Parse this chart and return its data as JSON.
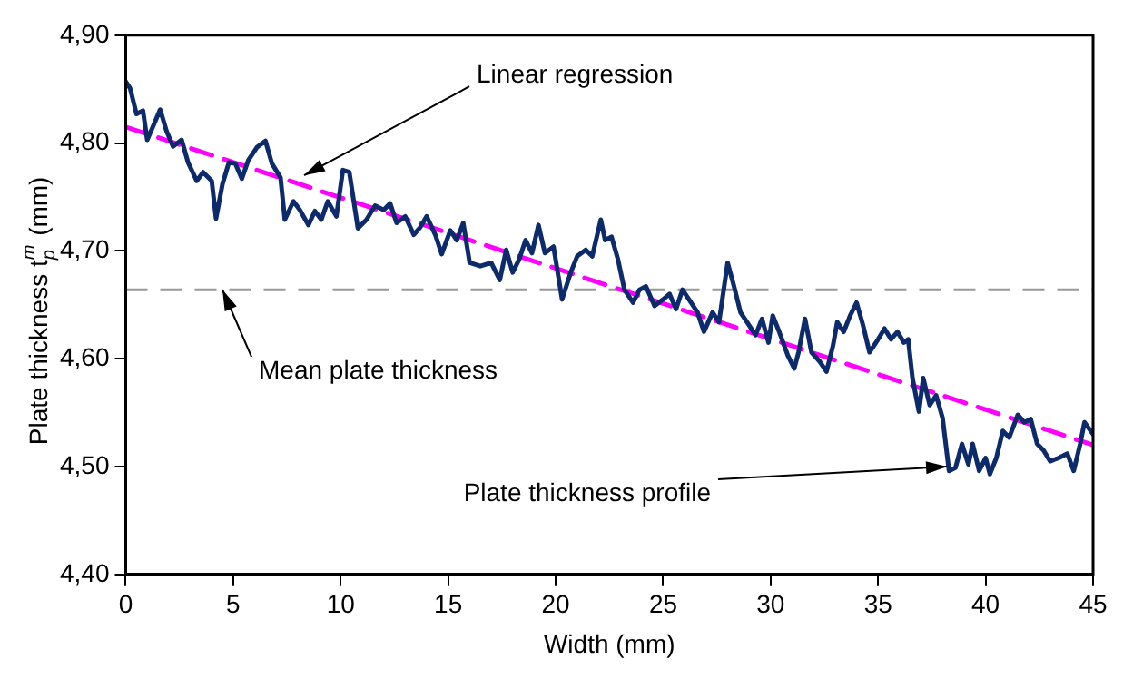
{
  "chart_data": {
    "type": "line",
    "xlabel": "Width (mm)",
    "ylabel": "Plate thickness t$_{p}$$^{m}$ (mm)",
    "xlim": [
      0,
      45
    ],
    "xticks": [
      0,
      5,
      10,
      15,
      20,
      25,
      30,
      35,
      40,
      45
    ],
    "ylim": [
      4.4,
      4.9
    ],
    "yticks": [
      {
        "value": 4.4,
        "label": "4,40"
      },
      {
        "value": 4.5,
        "label": "4,50"
      },
      {
        "value": 4.6,
        "label": "4,60"
      },
      {
        "value": 4.7,
        "label": "4,70"
      },
      {
        "value": 4.8,
        "label": "4,80"
      },
      {
        "value": 4.9,
        "label": "4,90"
      }
    ],
    "grid": false,
    "legend": false,
    "marker": "none",
    "series": [
      {
        "color": "#0d2a6b",
        "line_style": "solid",
        "x": [
          0,
          0.2,
          0.5,
          0.8,
          1.0,
          1.3,
          1.6,
          1.9,
          2.2,
          2.6,
          2.9,
          3.3,
          3.6,
          4.0,
          4.2,
          4.5,
          4.8,
          5.1,
          5.4,
          5.7,
          6.1,
          6.5,
          6.8,
          7.2,
          7.4,
          7.8,
          8.1,
          8.5,
          8.8,
          9.1,
          9.4,
          9.8,
          10.1,
          10.4,
          10.8,
          11.2,
          11.6,
          12.0,
          12.3,
          12.6,
          13.0,
          13.4,
          13.7,
          14.0,
          14.4,
          14.7,
          15.1,
          15.4,
          15.7,
          16.0,
          16.5,
          17.0,
          17.4,
          17.7,
          18.0,
          18.3,
          18.6,
          18.9,
          19.2,
          19.5,
          19.9,
          20.3,
          20.7,
          21.0,
          21.4,
          21.7,
          22.1,
          22.3,
          22.6,
          22.9,
          23.2,
          23.6,
          23.9,
          24.2,
          24.6,
          25.0,
          25.3,
          25.6,
          25.9,
          26.2,
          26.6,
          26.9,
          27.3,
          27.6,
          28.0,
          28.3,
          28.6,
          29.0,
          29.3,
          29.6,
          29.9,
          30.1,
          30.4,
          30.8,
          31.1,
          31.3,
          31.6,
          31.9,
          32.3,
          32.6,
          32.9,
          33.1,
          33.4,
          33.7,
          34.0,
          34.3,
          34.6,
          35.0,
          35.3,
          35.6,
          35.9,
          36.2,
          36.4,
          36.6,
          36.9,
          37.1,
          37.4,
          37.7,
          38.0,
          38.3,
          38.6,
          38.9,
          39.2,
          39.4,
          39.7,
          40.0,
          40.2,
          40.5,
          40.8,
          41.1,
          41.5,
          41.8,
          42.1,
          42.4,
          42.7,
          43.0,
          43.4,
          43.8,
          44.1,
          44.4,
          44.6,
          45.0
        ],
        "values": [
          4.857,
          4.851,
          4.827,
          4.83,
          4.803,
          4.817,
          4.831,
          4.811,
          4.797,
          4.803,
          4.782,
          4.765,
          4.773,
          4.765,
          4.73,
          4.762,
          4.782,
          4.781,
          4.767,
          4.784,
          4.796,
          4.802,
          4.781,
          4.768,
          4.729,
          4.746,
          4.738,
          4.724,
          4.737,
          4.729,
          4.746,
          4.732,
          4.775,
          4.773,
          4.721,
          4.729,
          4.742,
          4.738,
          4.744,
          4.726,
          4.732,
          4.715,
          4.722,
          4.732,
          4.715,
          4.697,
          4.719,
          4.71,
          4.726,
          4.689,
          4.686,
          4.689,
          4.673,
          4.701,
          4.68,
          4.692,
          4.71,
          4.698,
          4.724,
          4.698,
          4.704,
          4.655,
          4.68,
          4.695,
          4.701,
          4.695,
          4.729,
          4.71,
          4.713,
          4.692,
          4.664,
          4.652,
          4.664,
          4.667,
          4.649,
          4.655,
          4.66,
          4.646,
          4.664,
          4.655,
          4.643,
          4.625,
          4.643,
          4.634,
          4.689,
          4.667,
          4.643,
          4.631,
          4.622,
          4.637,
          4.615,
          4.64,
          4.625,
          4.603,
          4.591,
          4.606,
          4.637,
          4.606,
          4.597,
          4.588,
          4.612,
          4.634,
          4.625,
          4.64,
          4.652,
          4.631,
          4.606,
          4.618,
          4.628,
          4.618,
          4.625,
          4.615,
          4.618,
          4.582,
          4.551,
          4.582,
          4.557,
          4.566,
          4.545,
          4.496,
          4.499,
          4.521,
          4.502,
          4.521,
          4.496,
          4.508,
          4.493,
          4.508,
          4.533,
          4.527,
          4.548,
          4.541,
          4.544,
          4.521,
          4.515,
          4.505,
          4.508,
          4.512,
          4.496,
          4.521,
          4.541,
          4.53
        ]
      },
      {
        "color": "#ff00ff",
        "line_style": "dashed",
        "x": [
          0,
          45
        ],
        "values": [
          4.815,
          4.52
        ]
      }
    ],
    "ref_lines": [
      {
        "axis": "y",
        "value": 4.664,
        "color": "#999999",
        "line_style": "dashed"
      }
    ],
    "annotations": [
      {
        "text": "Linear regression",
        "x": 8.3,
        "y": 4.77
      },
      {
        "text": "Mean plate thickness",
        "x": 4.5,
        "y": 4.664
      },
      {
        "text": "Plate thickness profile",
        "x": 38.2,
        "y": 4.5
      }
    ]
  }
}
